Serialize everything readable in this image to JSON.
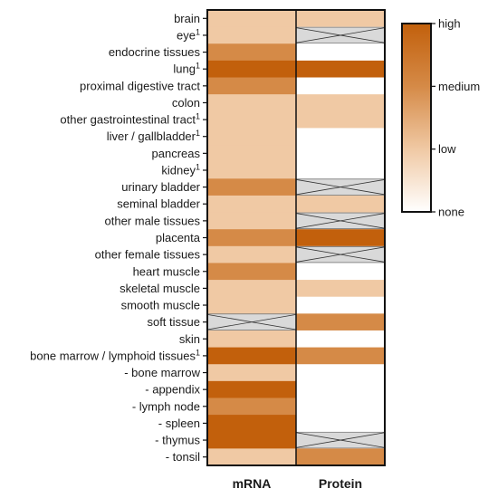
{
  "chart_data": {
    "type": "heatmap",
    "columns": [
      "mRNA",
      "Protein"
    ],
    "rows": [
      {
        "label": "brain",
        "sup": "",
        "mRNA": 1,
        "Protein": 1
      },
      {
        "label": "eye",
        "sup": "1",
        "mRNA": 1,
        "Protein": null
      },
      {
        "label": "endocrine tissues",
        "sup": "",
        "mRNA": 2,
        "Protein": 0
      },
      {
        "label": "lung",
        "sup": "1",
        "mRNA": 3,
        "Protein": 3
      },
      {
        "label": "proximal digestive tract",
        "sup": "",
        "mRNA": 2,
        "Protein": 0
      },
      {
        "label": "colon",
        "sup": "",
        "mRNA": 1,
        "Protein": 1
      },
      {
        "label": "other gastrointestinal tract",
        "sup": "1",
        "mRNA": 1,
        "Protein": 1
      },
      {
        "label": "liver / gallbladder",
        "sup": "1",
        "mRNA": 1,
        "Protein": 0
      },
      {
        "label": "pancreas",
        "sup": "",
        "mRNA": 1,
        "Protein": 0
      },
      {
        "label": "kidney",
        "sup": "1",
        "mRNA": 1,
        "Protein": 0
      },
      {
        "label": "urinary bladder",
        "sup": "",
        "mRNA": 2,
        "Protein": null
      },
      {
        "label": "seminal bladder",
        "sup": "",
        "mRNA": 1,
        "Protein": 1
      },
      {
        "label": "other male tissues",
        "sup": "",
        "mRNA": 1,
        "Protein": null
      },
      {
        "label": "placenta",
        "sup": "",
        "mRNA": 2,
        "Protein": 3
      },
      {
        "label": "other female tissues",
        "sup": "",
        "mRNA": 1,
        "Protein": null
      },
      {
        "label": "heart muscle",
        "sup": "",
        "mRNA": 2,
        "Protein": 0
      },
      {
        "label": "skeletal muscle",
        "sup": "",
        "mRNA": 1,
        "Protein": 1
      },
      {
        "label": "smooth muscle",
        "sup": "",
        "mRNA": 1,
        "Protein": 0
      },
      {
        "label": "soft tissue",
        "sup": "",
        "mRNA": null,
        "Protein": 2
      },
      {
        "label": "skin",
        "sup": "",
        "mRNA": 1,
        "Protein": 0
      },
      {
        "label": "bone marrow / lymphoid tissues",
        "sup": "1",
        "mRNA": 3,
        "Protein": 2
      },
      {
        "label": "- bone marrow",
        "sup": "",
        "mRNA": 1,
        "Protein": 0
      },
      {
        "label": "- appendix",
        "sup": "",
        "mRNA": 3,
        "Protein": 0
      },
      {
        "label": "- lymph node",
        "sup": "",
        "mRNA": 2,
        "Protein": 0
      },
      {
        "label": "- spleen",
        "sup": "",
        "mRNA": 3,
        "Protein": 0
      },
      {
        "label": "- thymus",
        "sup": "",
        "mRNA": 3,
        "Protein": null
      },
      {
        "label": "- tonsil",
        "sup": "",
        "mRNA": 1,
        "Protein": 2
      }
    ],
    "scale": {
      "levels": [
        "none",
        "low",
        "medium",
        "high"
      ],
      "colors": [
        "#ffffff",
        "#f0c9a4",
        "#d58a47",
        "#c2600c"
      ],
      "legend_gradient": [
        "#ffffff",
        "#f0c9a4",
        "#d58a47",
        "#c2600c"
      ],
      "na_color": "#d9d9d9"
    }
  }
}
